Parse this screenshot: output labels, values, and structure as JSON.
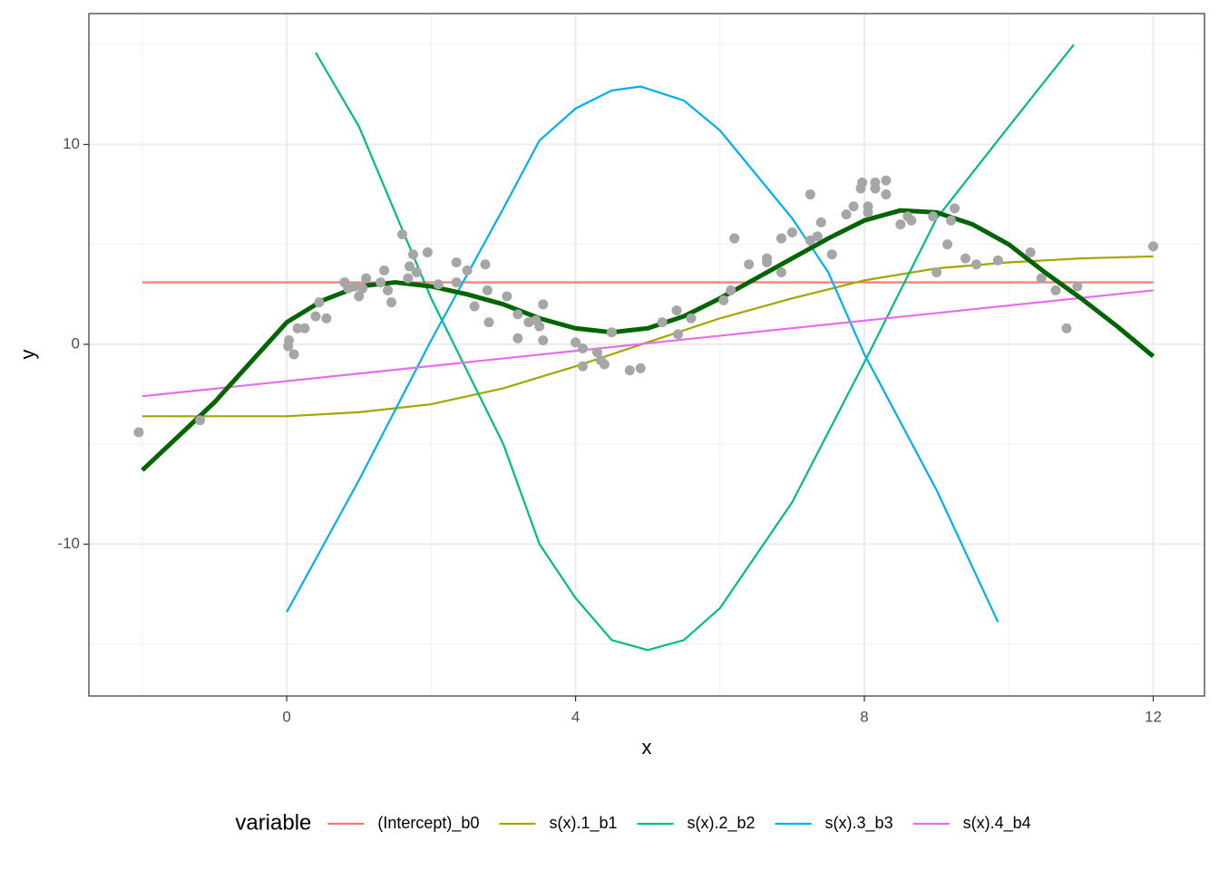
{
  "chart_data": {
    "type": "line",
    "x_label": "x",
    "y_label": "y",
    "legend_title": "variable",
    "legend_position": "bottom",
    "grid": true,
    "xlim": [
      -2.74,
      12.71
    ],
    "ylim": [
      -17.6,
      16.55
    ],
    "xticks": [
      0,
      4,
      8,
      12
    ],
    "yticks": [
      -10,
      0,
      10
    ],
    "minor_xgrid": [
      -2,
      2,
      6,
      10
    ],
    "minor_ygrid": [
      -15,
      -5,
      5,
      15
    ],
    "series": [
      {
        "name": "(Intercept)_b0",
        "color": "#f8766d",
        "x": [
          -2,
          12
        ],
        "values": [
          3.1,
          3.1
        ]
      },
      {
        "name": "s(x).1_b1",
        "color": "#a3a500",
        "x": [
          -2,
          0,
          1,
          2,
          3,
          4,
          5,
          6,
          7,
          8,
          9,
          10,
          11,
          12
        ],
        "values": [
          -3.6,
          -3.6,
          -3.4,
          -3.0,
          -2.2,
          -1.1,
          0.1,
          1.3,
          2.3,
          3.2,
          3.8,
          4.1,
          4.3,
          4.4
        ]
      },
      {
        "name": "s(x).2_b2",
        "color": "#00bf7d",
        "x": [
          0.4,
          1,
          2,
          3,
          3.5,
          4,
          4.5,
          5,
          5.5,
          6,
          7,
          8,
          9,
          10,
          10.9
        ],
        "values": [
          14.6,
          10.9,
          2.3,
          -5,
          -10,
          -12.7,
          -14.8,
          -15.3,
          -14.8,
          -13.2,
          -7.9,
          -0.9,
          6.3,
          10.9,
          15.0
        ]
      },
      {
        "name": "s(x).3_b3",
        "color": "#00b0f6",
        "x": [
          0,
          1,
          2,
          3,
          3.5,
          4,
          4.5,
          4.9,
          5.5,
          6,
          7,
          7.5,
          8,
          9,
          9.85
        ],
        "values": [
          -13.4,
          -6.8,
          0.2,
          6.8,
          10.2,
          11.8,
          12.7,
          12.9,
          12.2,
          10.7,
          6.3,
          3.6,
          -0.5,
          -7.3,
          -13.9
        ]
      },
      {
        "name": "s(x).4_b4",
        "color": "#e76bf3",
        "x": [
          -2,
          12
        ],
        "values": [
          -2.6,
          2.7
        ]
      }
    ],
    "fit": {
      "color": "#006400",
      "x": [
        -2,
        -1,
        0,
        0.5,
        1,
        1.5,
        2,
        2.5,
        3,
        3.5,
        4,
        4.5,
        5,
        5.5,
        6,
        6.5,
        7,
        7.5,
        8,
        8.5,
        9,
        9.5,
        10,
        10.5,
        11,
        11.5,
        12
      ],
      "values": [
        -6.3,
        -2.9,
        1.1,
        2.2,
        2.9,
        3.1,
        2.9,
        2.5,
        2.0,
        1.3,
        0.8,
        0.6,
        0.8,
        1.4,
        2.3,
        3.3,
        4.3,
        5.3,
        6.2,
        6.7,
        6.6,
        6.0,
        5.0,
        3.6,
        2.3,
        0.9,
        -0.6
      ]
    },
    "points": {
      "color": "#a6a6a6",
      "x": [
        -2.05,
        -1.2,
        0.02,
        0.03,
        0.1,
        0.15,
        0.25,
        0.4,
        0.45,
        0.55,
        0.8,
        0.85,
        0.95,
        1.0,
        1.05,
        1.1,
        1.3,
        1.35,
        1.4,
        1.45,
        1.6,
        1.68,
        1.7,
        1.75,
        1.8,
        1.95,
        2.1,
        2.35,
        2.35,
        2.5,
        2.6,
        2.75,
        2.78,
        2.8,
        3.05,
        3.2,
        3.2,
        3.35,
        3.45,
        3.5,
        3.55,
        3.55,
        4.0,
        4.1,
        4.1,
        4.3,
        4.35,
        4.4,
        4.5,
        4.75,
        4.9,
        5.2,
        5.4,
        5.42,
        5.6,
        6.05,
        6.15,
        6.2,
        6.4,
        6.65,
        6.65,
        6.85,
        6.85,
        7.0,
        7.25,
        7.25,
        7.35,
        7.4,
        7.55,
        7.75,
        7.85,
        7.95,
        7.97,
        8.05,
        8.05,
        8.15,
        8.15,
        8.3,
        8.3,
        8.5,
        8.6,
        8.65,
        8.95,
        9.0,
        9.15,
        9.2,
        9.25,
        9.4,
        9.55,
        9.85,
        10.3,
        10.45,
        10.65,
        10.8,
        10.95,
        12.0
      ],
      "y": [
        -4.4,
        -3.8,
        -0.1,
        0.2,
        -0.5,
        0.8,
        0.8,
        1.4,
        2.1,
        1.3,
        3.1,
        2.8,
        2.9,
        2.4,
        2.8,
        3.3,
        3.1,
        3.7,
        2.7,
        2.1,
        5.5,
        3.3,
        3.9,
        4.5,
        3.6,
        4.6,
        3.0,
        3.1,
        4.1,
        3.7,
        1.9,
        4.0,
        2.7,
        1.1,
        2.4,
        1.5,
        0.3,
        1.1,
        1.2,
        0.9,
        0.2,
        2.0,
        0.1,
        -1.1,
        -0.2,
        -0.4,
        -0.8,
        -1.0,
        0.6,
        -1.3,
        -1.2,
        1.1,
        1.7,
        0.5,
        1.3,
        2.2,
        2.7,
        5.3,
        4.0,
        4.3,
        4.1,
        3.6,
        5.3,
        5.6,
        7.5,
        5.2,
        5.4,
        6.1,
        4.5,
        6.5,
        6.9,
        7.8,
        8.1,
        6.9,
        6.6,
        8.1,
        7.8,
        8.2,
        7.5,
        6.0,
        6.4,
        6.2,
        6.4,
        3.6,
        5.0,
        6.2,
        6.8,
        4.3,
        4.0,
        4.2,
        4.6,
        3.3,
        2.7,
        0.8,
        2.9,
        4.9
      ]
    }
  }
}
